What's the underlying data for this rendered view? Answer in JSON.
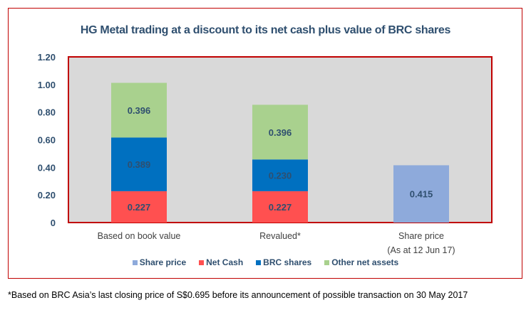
{
  "chart_data": {
    "type": "bar",
    "stacked": true,
    "title": "HG Metal trading at a discount to its net cash plus value of BRC shares",
    "categories": [
      "Based on book value",
      "Revalued*",
      "Share price\n(As at 12 Jun 17)"
    ],
    "series": [
      {
        "name": "Share price",
        "color": "#8eaadb",
        "values": [
          null,
          null,
          0.415
        ]
      },
      {
        "name": "Net Cash",
        "color": "#ff5050",
        "values": [
          0.227,
          0.227,
          null
        ]
      },
      {
        "name": "BRC shares",
        "color": "#0070c0",
        "values": [
          0.389,
          0.23,
          null
        ]
      },
      {
        "name": "Other net assets",
        "color": "#a9d18e",
        "values": [
          0.396,
          0.396,
          null
        ]
      }
    ],
    "ylim": [
      0,
      1.2
    ],
    "yticks": [
      "0",
      "0.20",
      "0.40",
      "0.60",
      "0.80",
      "1.00",
      "1.20"
    ],
    "ytick_values": [
      0,
      0.2,
      0.4,
      0.6,
      0.8,
      1.0,
      1.2
    ],
    "plot_background": "#d9d9d9",
    "border_color": "#c00000",
    "grid": false,
    "legend_position": "bottom"
  },
  "footnote": "*Based on BRC Asia’s last closing price of S$0.695 before its announcement of possible transaction on 30 May 2017"
}
